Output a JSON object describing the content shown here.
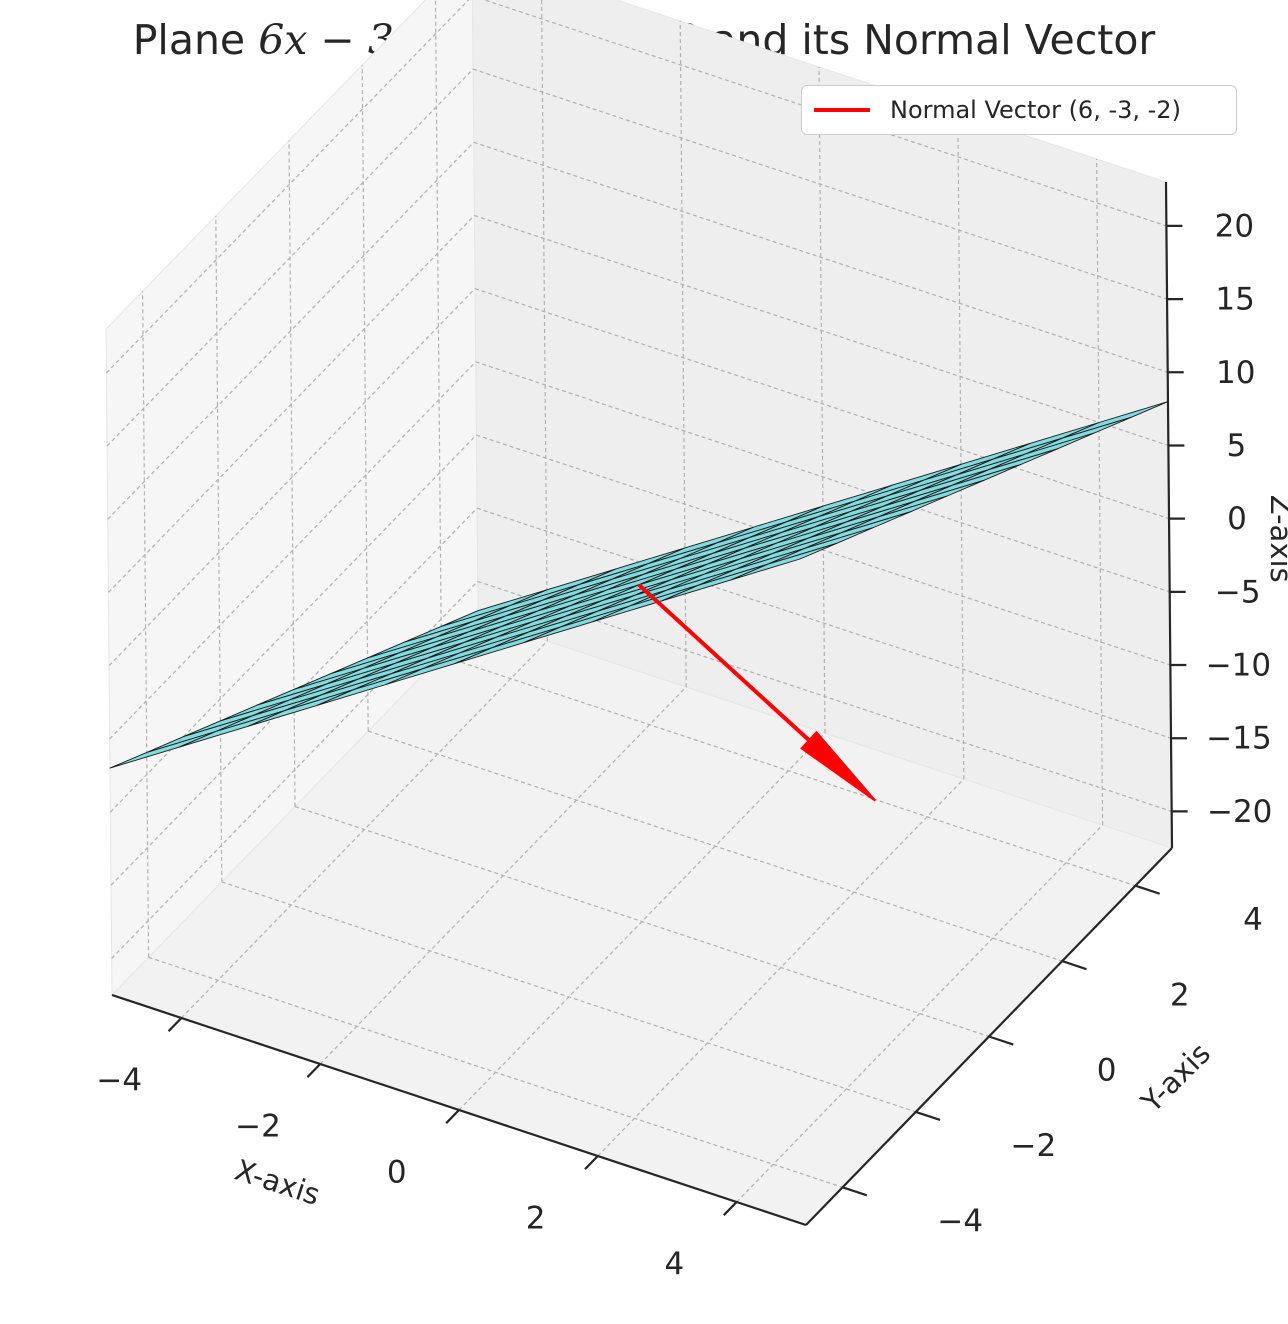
{
  "title_parts": {
    "prefix": "Plane ",
    "equation": "6x − 3y − 2z + 1 = 0",
    "suffix": " and its Normal Vector"
  },
  "chart_data": {
    "type": "3d-surface",
    "title": "Plane 6x − 3y − 2z + 1 = 0 and its Normal Vector",
    "xlabel": "X-axis",
    "ylabel": "Y-axis",
    "zlabel": "Z-axis",
    "xlim": [
      -5,
      5
    ],
    "ylim": [
      -5,
      5
    ],
    "zlim": [
      -22.5,
      23
    ],
    "xticks": [
      "−4",
      "−2",
      "0",
      "2",
      "4"
    ],
    "yticks": [
      "−4",
      "−2",
      "0",
      "2",
      "4"
    ],
    "zticks": [
      "−20",
      "−15",
      "−10",
      "−5",
      "0",
      "5",
      "10",
      "15",
      "20"
    ],
    "grid": true,
    "surface": {
      "equation": "z = (6x - 3y + 1) / 2",
      "color": "#6fd6dc",
      "edge_color": "#1a1a1a"
    },
    "series": [
      {
        "name": "Normal Vector (6, -3, -2)",
        "type": "quiver",
        "origin": [
          0,
          0,
          0.5
        ],
        "direction": [
          6,
          -3,
          -2
        ],
        "color": "#ff0000"
      }
    ],
    "legend": {
      "placement": "top-right",
      "entries": [
        "Normal Vector (6, -3, -2)"
      ]
    }
  },
  "colors": {
    "pane": "#f2f2f2",
    "grid": "#b0b0b0",
    "vector": "#ff0000",
    "surface": "#6fd6dc"
  }
}
